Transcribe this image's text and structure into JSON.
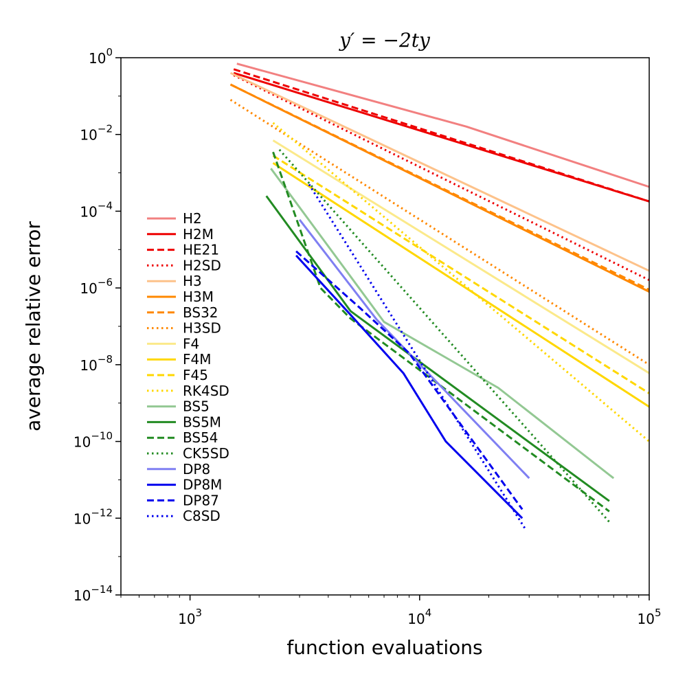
{
  "chart_data": {
    "type": "line",
    "title": "y′ = −2ty",
    "xlabel": "function evaluations",
    "ylabel": "average relative error",
    "xscale": "log",
    "yscale": "log",
    "xlim": [
      500,
      100000
    ],
    "ylim": [
      1e-14,
      1
    ],
    "x_ticks": [
      {
        "value": 1000,
        "base": "10",
        "exp": "3"
      },
      {
        "value": 10000,
        "base": "10",
        "exp": "4"
      },
      {
        "value": 100000,
        "base": "10",
        "exp": "5"
      }
    ],
    "y_ticks": [
      {
        "value": 1,
        "base": "10",
        "exp": "0"
      },
      {
        "value": 0.01,
        "base": "10",
        "exp": "−2"
      },
      {
        "value": 0.0001,
        "base": "10",
        "exp": "−4"
      },
      {
        "value": 1e-06,
        "base": "10",
        "exp": "−6"
      },
      {
        "value": 1e-08,
        "base": "10",
        "exp": "−8"
      },
      {
        "value": 1e-10,
        "base": "10",
        "exp": "−10"
      },
      {
        "value": 1e-12,
        "base": "10",
        "exp": "−12"
      },
      {
        "value": 1e-14,
        "base": "10",
        "exp": "−14"
      }
    ],
    "grid": false,
    "legend_position": "center-left",
    "series": [
      {
        "name": "H2",
        "color": "#f28080",
        "style": "solid",
        "x": [
          1600,
          16000,
          100000
        ],
        "y": [
          0.7,
          0.016,
          0.00043
        ]
      },
      {
        "name": "H2M",
        "color": "#ee0000",
        "style": "solid",
        "x": [
          1550,
          100000
        ],
        "y": [
          0.4,
          0.00018
        ]
      },
      {
        "name": "HE21",
        "color": "#ee0000",
        "style": "dashed",
        "x": [
          1550,
          100000
        ],
        "y": [
          0.5,
          0.00018
        ]
      },
      {
        "name": "H2SD",
        "color": "#ee0000",
        "style": "dotted",
        "x": [
          1550,
          100000
        ],
        "y": [
          0.35,
          1.6e-06
        ]
      },
      {
        "name": "H3",
        "color": "#fdc28a",
        "style": "solid",
        "x": [
          1500,
          100000
        ],
        "y": [
          0.4,
          2.8e-06
        ]
      },
      {
        "name": "H3M",
        "color": "#ff8800",
        "style": "solid",
        "x": [
          1500,
          100000
        ],
        "y": [
          0.2,
          8e-07
        ]
      },
      {
        "name": "BS32",
        "color": "#ff8800",
        "style": "dashed",
        "x": [
          1500,
          100000
        ],
        "y": [
          0.2,
          9e-07
        ]
      },
      {
        "name": "H3SD",
        "color": "#ff8800",
        "style": "dotted",
        "x": [
          1500,
          100000
        ],
        "y": [
          0.08,
          1e-08
        ]
      },
      {
        "name": "F4",
        "color": "#fbe98a",
        "style": "solid",
        "x": [
          2300,
          100000
        ],
        "y": [
          0.007,
          6e-09
        ]
      },
      {
        "name": "F4M",
        "color": "#ffd700",
        "style": "solid",
        "x": [
          2300,
          100000
        ],
        "y": [
          0.0018,
          8e-10
        ]
      },
      {
        "name": "F45",
        "color": "#ffd700",
        "style": "dashed",
        "x": [
          2300,
          100000
        ],
        "y": [
          0.0028,
          1.8e-09
        ]
      },
      {
        "name": "RK4SD",
        "color": "#ffd700",
        "style": "dotted",
        "x": [
          2300,
          100000
        ],
        "y": [
          0.02,
          1e-10
        ]
      },
      {
        "name": "BS5",
        "color": "#93c893",
        "style": "solid",
        "x": [
          2250,
          7000,
          22000,
          70000
        ],
        "y": [
          0.0013,
          1.3e-07,
          2.5e-09,
          1.1e-11
        ]
      },
      {
        "name": "BS5M",
        "color": "#228b22",
        "style": "solid",
        "x": [
          2150,
          5000,
          67000
        ],
        "y": [
          0.00025,
          2.5e-07,
          2.8e-12
        ]
      },
      {
        "name": "BS54",
        "color": "#228b22",
        "style": "dashed",
        "x": [
          2300,
          3700,
          5000,
          67000
        ],
        "y": [
          0.0035,
          1e-06,
          1.6e-07,
          1.5e-12
        ]
      },
      {
        "name": "CK5SD",
        "color": "#228b22",
        "style": "dotted",
        "x": [
          2450,
          67000
        ],
        "y": [
          0.004,
          8e-13
        ]
      },
      {
        "name": "DP8",
        "color": "#7f7ff2",
        "style": "solid",
        "x": [
          3000,
          6500,
          30000
        ],
        "y": [
          6e-05,
          1.5e-07,
          1.1e-11
        ]
      },
      {
        "name": "DP8M",
        "color": "#0000ee",
        "style": "solid",
        "x": [
          2900,
          5000,
          8500,
          13000,
          28000
        ],
        "y": [
          7e-06,
          2e-07,
          6e-09,
          1e-10,
          1e-12
        ]
      },
      {
        "name": "DP87",
        "color": "#0000ee",
        "style": "dashed",
        "x": [
          2900,
          5500,
          9000,
          28000
        ],
        "y": [
          9e-06,
          3e-07,
          2e-08,
          1.7e-12
        ]
      },
      {
        "name": "C8SD",
        "color": "#0000ee",
        "style": "dotted",
        "x": [
          3300,
          29000
        ],
        "y": [
          0.0005,
          5e-13
        ]
      }
    ]
  }
}
